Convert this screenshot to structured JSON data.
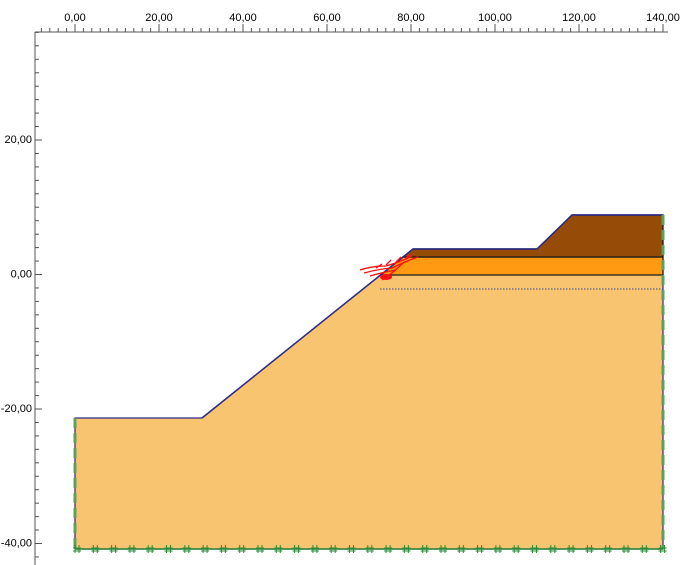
{
  "top_ruler": [
    "0,00",
    "20,00",
    "40,00",
    "60,00",
    "80,00",
    "100,00",
    "120,00",
    "140,00"
  ],
  "left_ruler": [
    "20,00",
    "0,00",
    "-20,00",
    "-40,00"
  ]
}
